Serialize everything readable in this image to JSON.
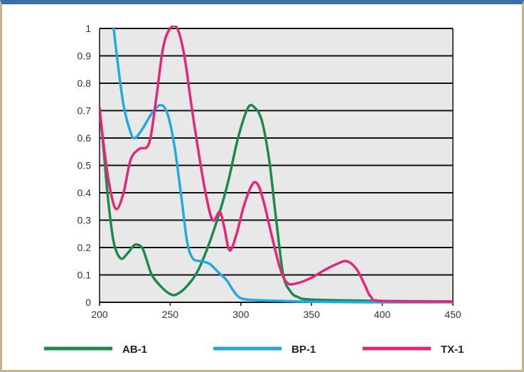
{
  "chart_data": {
    "type": "line",
    "title": "",
    "xlabel": "",
    "ylabel": "",
    "xlim": [
      200,
      450
    ],
    "ylim": [
      0,
      1
    ],
    "x_ticks": [
      "200",
      "250",
      "300",
      "350",
      "400",
      "450"
    ],
    "y_ticks": [
      "0",
      "0.1",
      "0.2",
      "0.3",
      "0.4",
      "0.5",
      "0.6",
      "0.7",
      "0.8",
      "0.9",
      "1"
    ],
    "grid": true,
    "legend_position": "bottom",
    "series": [
      {
        "name": "AB-1",
        "color": "#1e8a4a",
        "points": [
          [
            200,
            0.71
          ],
          [
            203,
            0.55
          ],
          [
            206,
            0.38
          ],
          [
            210,
            0.22
          ],
          [
            215,
            0.16
          ],
          [
            220,
            0.18
          ],
          [
            225,
            0.21
          ],
          [
            230,
            0.2
          ],
          [
            233,
            0.16
          ],
          [
            237,
            0.1
          ],
          [
            243,
            0.06
          ],
          [
            250,
            0.03
          ],
          [
            255,
            0.03
          ],
          [
            262,
            0.06
          ],
          [
            270,
            0.12
          ],
          [
            280,
            0.25
          ],
          [
            290,
            0.42
          ],
          [
            298,
            0.6
          ],
          [
            305,
            0.71
          ],
          [
            310,
            0.71
          ],
          [
            315,
            0.66
          ],
          [
            320,
            0.52
          ],
          [
            325,
            0.3
          ],
          [
            330,
            0.1
          ],
          [
            335,
            0.04
          ],
          [
            340,
            0.02
          ],
          [
            350,
            0.01
          ],
          [
            400,
            0.005
          ],
          [
            450,
            0.003
          ]
        ]
      },
      {
        "name": "BP-1",
        "color": "#25a7e0",
        "points": [
          [
            210,
            1.0
          ],
          [
            213,
            0.87
          ],
          [
            217,
            0.72
          ],
          [
            222,
            0.62
          ],
          [
            225,
            0.6
          ],
          [
            230,
            0.63
          ],
          [
            237,
            0.69
          ],
          [
            243,
            0.72
          ],
          [
            248,
            0.69
          ],
          [
            253,
            0.57
          ],
          [
            258,
            0.38
          ],
          [
            262,
            0.22
          ],
          [
            266,
            0.16
          ],
          [
            272,
            0.15
          ],
          [
            278,
            0.14
          ],
          [
            284,
            0.11
          ],
          [
            290,
            0.08
          ],
          [
            295,
            0.04
          ],
          [
            300,
            0.015
          ],
          [
            310,
            0.008
          ],
          [
            330,
            0.005
          ],
          [
            350,
            0.002
          ],
          [
            400,
            0.0
          ],
          [
            450,
            0.0
          ]
        ]
      },
      {
        "name": "TX-1",
        "color": "#e0287a",
        "points": [
          [
            200,
            0.71
          ],
          [
            204,
            0.53
          ],
          [
            208,
            0.4
          ],
          [
            212,
            0.34
          ],
          [
            217,
            0.4
          ],
          [
            222,
            0.52
          ],
          [
            228,
            0.56
          ],
          [
            235,
            0.58
          ],
          [
            240,
            0.74
          ],
          [
            245,
            0.93
          ],
          [
            250,
            1.0
          ],
          [
            255,
            1.0
          ],
          [
            260,
            0.9
          ],
          [
            265,
            0.72
          ],
          [
            270,
            0.55
          ],
          [
            275,
            0.4
          ],
          [
            280,
            0.3
          ],
          [
            285,
            0.33
          ],
          [
            288,
            0.28
          ],
          [
            292,
            0.19
          ],
          [
            297,
            0.25
          ],
          [
            302,
            0.35
          ],
          [
            308,
            0.43
          ],
          [
            312,
            0.43
          ],
          [
            316,
            0.37
          ],
          [
            322,
            0.24
          ],
          [
            328,
            0.12
          ],
          [
            333,
            0.07
          ],
          [
            340,
            0.07
          ],
          [
            350,
            0.09
          ],
          [
            360,
            0.12
          ],
          [
            368,
            0.14
          ],
          [
            375,
            0.15
          ],
          [
            382,
            0.12
          ],
          [
            388,
            0.06
          ],
          [
            392,
            0.02
          ],
          [
            400,
            0.005
          ],
          [
            450,
            0.003
          ]
        ]
      }
    ]
  }
}
